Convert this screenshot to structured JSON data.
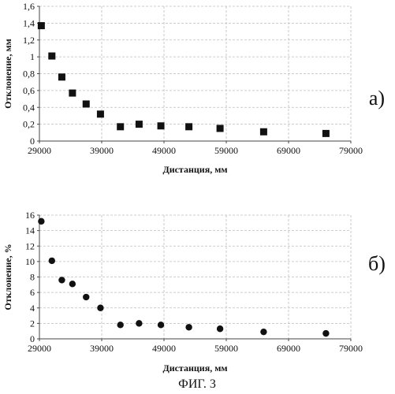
{
  "figure_caption": "ФИГ. 3",
  "chart_data": [
    {
      "type": "scatter",
      "panel_label": "а)",
      "marker": "square",
      "xlabel": "Дистанция, мм",
      "ylabel": "Отклонение, мм",
      "xlim": [
        29000,
        79000
      ],
      "ylim": [
        0,
        1.6
      ],
      "xticks": [
        29000,
        39000,
        49000,
        59000,
        69000,
        79000
      ],
      "xtick_labels": [
        "29000",
        "39000",
        "49000",
        "59000",
        "69000",
        "79000"
      ],
      "yticks": [
        0,
        0.2,
        0.4,
        0.6,
        0.8,
        1,
        1.2,
        1.4,
        1.6
      ],
      "ytick_labels": [
        "0",
        "0,2",
        "0,4",
        "0,6",
        "0,8",
        "1",
        "1,2",
        "1,4",
        "1,6"
      ],
      "grid": true,
      "x": [
        29300,
        31000,
        32600,
        34300,
        36500,
        38800,
        42000,
        45000,
        48500,
        53000,
        58000,
        65000,
        75000
      ],
      "y": [
        1.37,
        1.01,
        0.76,
        0.57,
        0.44,
        0.32,
        0.17,
        0.2,
        0.18,
        0.17,
        0.15,
        0.11,
        0.09
      ]
    },
    {
      "type": "scatter",
      "panel_label": "б)",
      "marker": "circle",
      "xlabel": "Дистанция, мм",
      "ylabel": "Отклонение, %",
      "xlim": [
        29000,
        79000
      ],
      "ylim": [
        0,
        16
      ],
      "xticks": [
        29000,
        39000,
        49000,
        59000,
        69000,
        79000
      ],
      "xtick_labels": [
        "29000",
        "39000",
        "49000",
        "59000",
        "69000",
        "79000"
      ],
      "yticks": [
        0,
        2,
        4,
        6,
        8,
        10,
        12,
        14,
        16
      ],
      "ytick_labels": [
        "0",
        "2",
        "4",
        "6",
        "8",
        "10",
        "12",
        "14",
        "16"
      ],
      "grid": true,
      "x": [
        29300,
        31000,
        32600,
        34300,
        36500,
        38800,
        42000,
        45000,
        48500,
        53000,
        58000,
        65000,
        75000
      ],
      "y": [
        15.2,
        10.1,
        7.6,
        7.1,
        5.4,
        4.0,
        1.8,
        2.0,
        1.8,
        1.5,
        1.3,
        0.9,
        0.7
      ]
    }
  ]
}
